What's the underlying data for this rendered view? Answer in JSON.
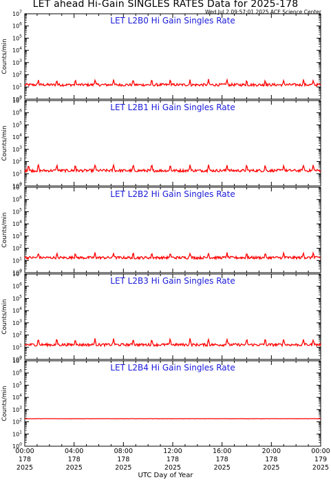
{
  "title": "LET ahead Hi-Gain SINGLES RATES Data for 2025-178",
  "timestamp": "Wed Jul  2 09:57:01 2025 ACE Science Center",
  "x_axis_title": "UTC Day of Year",
  "colors": {
    "panel_title": "#1a1adb",
    "series": "#ff0000",
    "axes": "#000000"
  },
  "chart_data": [
    {
      "type": "line",
      "title": "LET L2B0 Hi Gain Singles Rate",
      "ylabel": "Counts/min",
      "yscale": "log",
      "ylim": [
        1,
        10000000
      ],
      "xlim": [
        0,
        24
      ],
      "series": [
        {
          "color": "#ff0000",
          "base": 15,
          "spikes_at": [
            1.1,
            2.6,
            4.1,
            5.7,
            7.2,
            8.8,
            10.3,
            11.8,
            13.4,
            14.9,
            16.4,
            18.0,
            19.5,
            21.0,
            22.6,
            23.4
          ],
          "spike_peak": 40
        }
      ]
    },
    {
      "type": "line",
      "title": "LET L2B1 Hi Gain Singles Rate",
      "ylabel": "Counts/min",
      "yscale": "log",
      "ylim": [
        1,
        10000000
      ],
      "xlim": [
        0,
        24
      ],
      "series": [
        {
          "color": "#ff0000",
          "base": 18,
          "spikes_at": [
            0.3,
            1.1,
            2.6,
            4.1,
            5.7,
            7.2,
            8.8,
            10.3,
            11.8,
            13.4,
            14.9,
            16.4,
            18.0,
            19.5,
            21.0,
            22.6,
            23.4
          ],
          "spike_peak": 55
        }
      ]
    },
    {
      "type": "line",
      "title": "LET L2B2 Hi Gain Singles Rate",
      "ylabel": "Counts/min",
      "yscale": "log",
      "ylim": [
        1,
        10000000
      ],
      "xlim": [
        0,
        24
      ],
      "series": [
        {
          "color": "#ff0000",
          "base": 17,
          "spikes_at": [
            1.1,
            2.6,
            4.1,
            5.7,
            7.2,
            8.8,
            10.3,
            11.8,
            13.4,
            14.9,
            16.4,
            18.0,
            19.5,
            21.0,
            22.6,
            23.4
          ],
          "spike_peak": 45
        }
      ]
    },
    {
      "type": "line",
      "title": "LET L2B3 Hi Gain Singles Rate",
      "ylabel": "Counts/min",
      "yscale": "log",
      "ylim": [
        1,
        10000000
      ],
      "xlim": [
        0,
        24
      ],
      "series": [
        {
          "color": "#ff0000",
          "base": 16,
          "spikes_at": [
            1.1,
            2.6,
            4.1,
            5.7,
            7.2,
            8.8,
            10.3,
            11.8,
            13.4,
            14.9,
            16.4,
            18.0,
            19.5,
            21.0,
            22.6,
            23.4
          ],
          "spike_peak": 50
        }
      ]
    },
    {
      "type": "line",
      "title": "LET L2B4 Hi Gain Singles Rate",
      "ylabel": "Counts/min",
      "yscale": "log",
      "ylim": [
        1,
        10000000
      ],
      "xlim": [
        0,
        24
      ],
      "series": [
        {
          "color": "#ff0000",
          "base": 180,
          "spikes_at": [],
          "spike_peak": 180
        }
      ]
    }
  ],
  "y_ticks": [
    {
      "base": "10",
      "exp": "0"
    },
    {
      "base": "10",
      "exp": "1"
    },
    {
      "base": "10",
      "exp": "2"
    },
    {
      "base": "10",
      "exp": "3"
    },
    {
      "base": "10",
      "exp": "4"
    },
    {
      "base": "10",
      "exp": "5"
    },
    {
      "base": "10",
      "exp": "6"
    },
    {
      "base": "10",
      "exp": "7"
    }
  ],
  "x_ticks": [
    {
      "time": "00:00",
      "doy": "178",
      "year": "2025"
    },
    {
      "time": "04:00",
      "doy": "178",
      "year": "2025"
    },
    {
      "time": "08:00",
      "doy": "178",
      "year": "2025"
    },
    {
      "time": "12:00",
      "doy": "178",
      "year": "2025"
    },
    {
      "time": "16:00",
      "doy": "178",
      "year": "2025"
    },
    {
      "time": "20:00",
      "doy": "178",
      "year": "2025"
    },
    {
      "time": "00:00",
      "doy": "179",
      "year": "2025"
    }
  ]
}
